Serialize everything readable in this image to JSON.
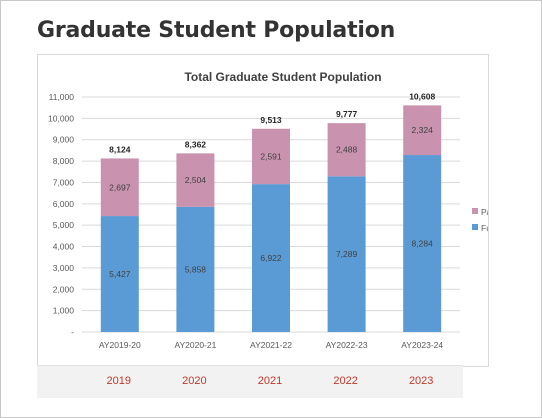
{
  "page": {
    "heading": "Graduate Student Population"
  },
  "chart_data": {
    "type": "bar",
    "stacked": true,
    "title": "Total Graduate Student Population",
    "categories": [
      "AY2019-20",
      "AY2020-21",
      "AY2021-22",
      "AY2022-23",
      "AY2023-24"
    ],
    "series": [
      {
        "name": "Full-time",
        "color": "#5b9bd5",
        "values": [
          5427,
          5858,
          6922,
          7289,
          8284
        ],
        "labels": [
          "5,427",
          "5,858",
          "6,922",
          "7,289",
          "8,284"
        ]
      },
      {
        "name": "Part-time",
        "color": "#c992af",
        "values": [
          2697,
          2504,
          2591,
          2488,
          2324
        ],
        "labels": [
          "2,697",
          "2,504",
          "2,591",
          "2,488",
          "2,324"
        ]
      }
    ],
    "totals": [
      "8,124",
      "8,362",
      "9,513",
      "9,777",
      "10,608"
    ],
    "yticks": [
      "-",
      "1,000",
      "2,000",
      "3,000",
      "4,000",
      "5,000",
      "6,000",
      "7,000",
      "8,000",
      "9,000",
      "10,000",
      "11,000"
    ],
    "ylim": [
      0,
      11000
    ],
    "grid": true,
    "legend_position": "right",
    "xlabel": "",
    "ylabel": ""
  },
  "years": [
    "2019",
    "2020",
    "2021",
    "2022",
    "2023"
  ]
}
